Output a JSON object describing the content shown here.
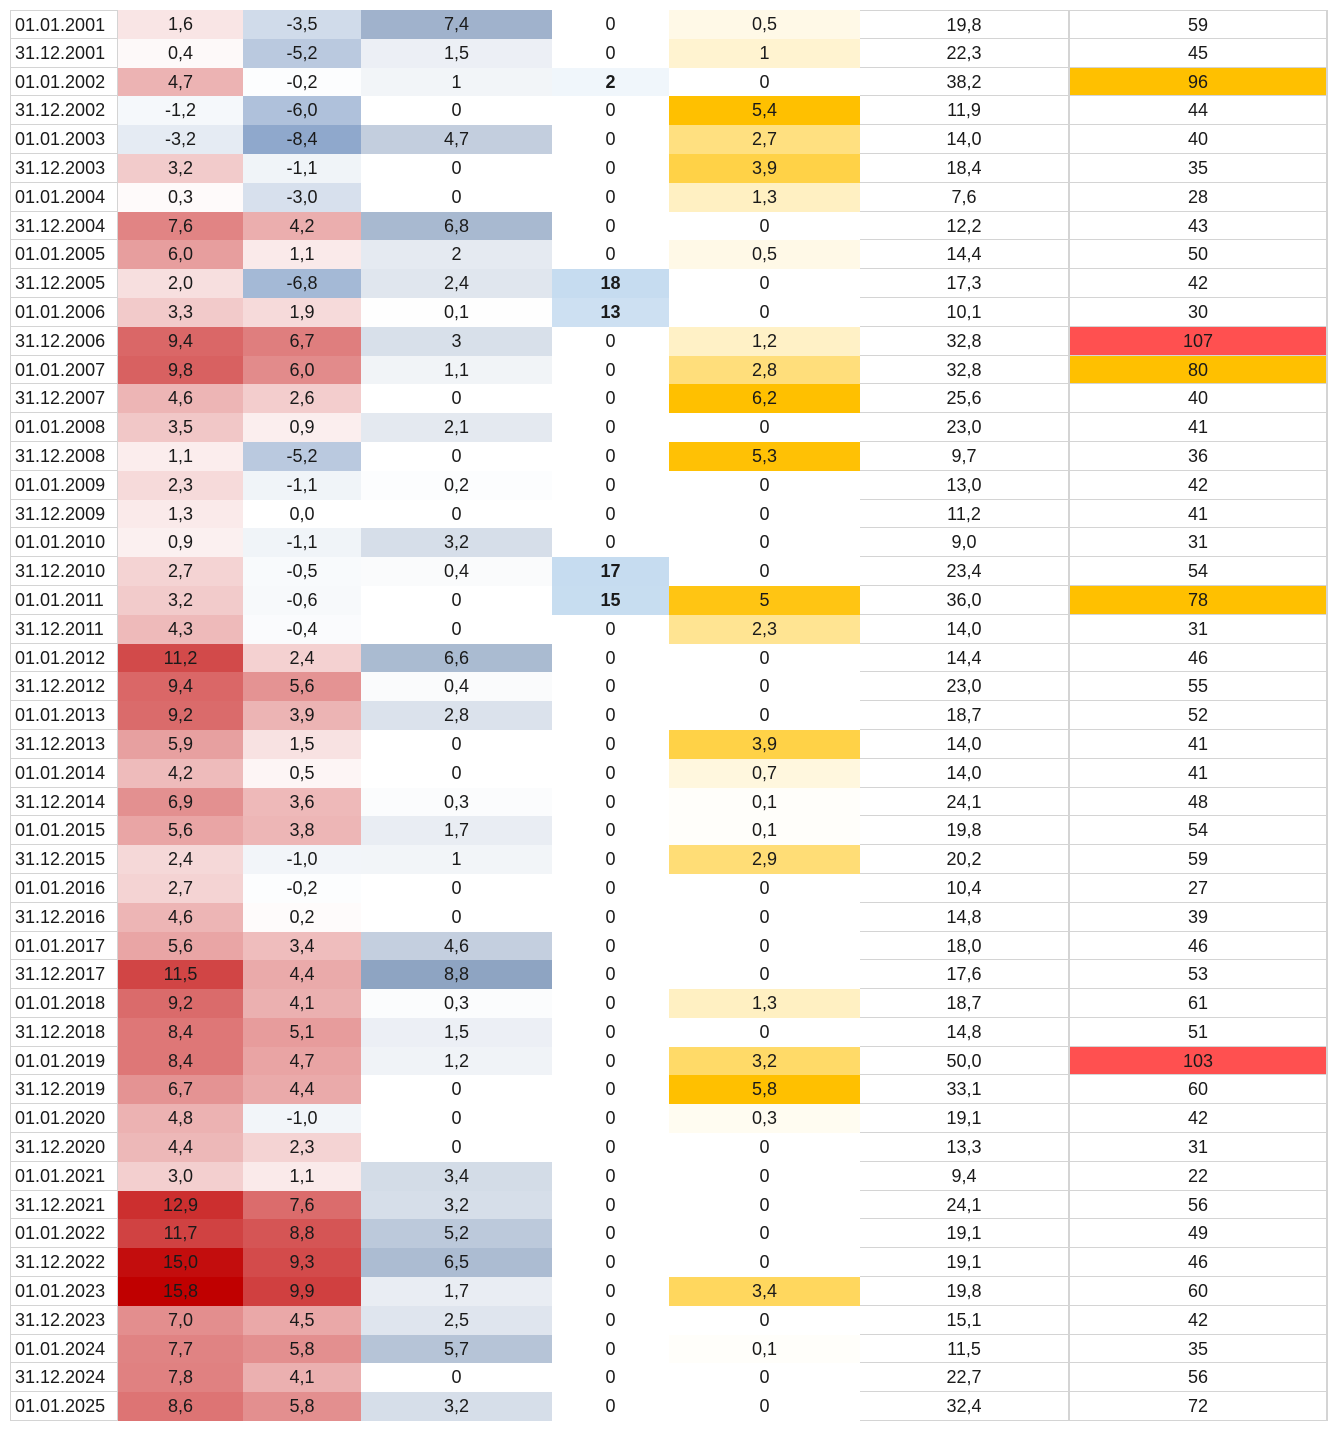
{
  "colors": {
    "red_max": "#C00000",
    "blue_neg": "#8FA8CC",
    "blue_col3": "#8EA4C2",
    "blue_col4": "#C6DCF0",
    "yellow": "#FFC000",
    "alert_orange": "#FFC000",
    "alert_red": "#FF5050"
  },
  "rows": [
    [
      "01.01.2001",
      "1,6",
      "-3,5",
      "7,4",
      "0",
      "0,5",
      "19,8",
      "59"
    ],
    [
      "31.12.2001",
      "0,4",
      "-5,2",
      "1,5",
      "0",
      "1",
      "22,3",
      "45"
    ],
    [
      "01.01.2002",
      "4,7",
      "-0,2",
      "1",
      "2",
      "0",
      "38,2",
      "96"
    ],
    [
      "31.12.2002",
      "-1,2",
      "-6,0",
      "0",
      "0",
      "5,4",
      "11,9",
      "44"
    ],
    [
      "01.01.2003",
      "-3,2",
      "-8,4",
      "4,7",
      "0",
      "2,7",
      "14,0",
      "40"
    ],
    [
      "31.12.2003",
      "3,2",
      "-1,1",
      "0",
      "0",
      "3,9",
      "18,4",
      "35"
    ],
    [
      "01.01.2004",
      "0,3",
      "-3,0",
      "0",
      "0",
      "1,3",
      "7,6",
      "28"
    ],
    [
      "31.12.2004",
      "7,6",
      "4,2",
      "6,8",
      "0",
      "0",
      "12,2",
      "43"
    ],
    [
      "01.01.2005",
      "6,0",
      "1,1",
      "2",
      "0",
      "0,5",
      "14,4",
      "50"
    ],
    [
      "31.12.2005",
      "2,0",
      "-6,8",
      "2,4",
      "18",
      "0",
      "17,3",
      "42"
    ],
    [
      "01.01.2006",
      "3,3",
      "1,9",
      "0,1",
      "13",
      "0",
      "10,1",
      "30"
    ],
    [
      "31.12.2006",
      "9,4",
      "6,7",
      "3",
      "0",
      "1,2",
      "32,8",
      "107"
    ],
    [
      "01.01.2007",
      "9,8",
      "6,0",
      "1,1",
      "0",
      "2,8",
      "32,8",
      "80"
    ],
    [
      "31.12.2007",
      "4,6",
      "2,6",
      "0",
      "0",
      "6,2",
      "25,6",
      "40"
    ],
    [
      "01.01.2008",
      "3,5",
      "0,9",
      "2,1",
      "0",
      "0",
      "23,0",
      "41"
    ],
    [
      "31.12.2008",
      "1,1",
      "-5,2",
      "0",
      "0",
      "5,3",
      "9,7",
      "36"
    ],
    [
      "01.01.2009",
      "2,3",
      "-1,1",
      "0,2",
      "0",
      "0",
      "13,0",
      "42"
    ],
    [
      "31.12.2009",
      "1,3",
      "0,0",
      "0",
      "0",
      "0",
      "11,2",
      "41"
    ],
    [
      "01.01.2010",
      "0,9",
      "-1,1",
      "3,2",
      "0",
      "0",
      "9,0",
      "31"
    ],
    [
      "31.12.2010",
      "2,7",
      "-0,5",
      "0,4",
      "17",
      "0",
      "23,4",
      "54"
    ],
    [
      "01.01.2011",
      "3,2",
      "-0,6",
      "0",
      "15",
      "5",
      "36,0",
      "78"
    ],
    [
      "31.12.2011",
      "4,3",
      "-0,4",
      "0",
      "0",
      "2,3",
      "14,0",
      "31"
    ],
    [
      "01.01.2012",
      "11,2",
      "2,4",
      "6,6",
      "0",
      "0",
      "14,4",
      "46"
    ],
    [
      "31.12.2012",
      "9,4",
      "5,6",
      "0,4",
      "0",
      "0",
      "23,0",
      "55"
    ],
    [
      "01.01.2013",
      "9,2",
      "3,9",
      "2,8",
      "0",
      "0",
      "18,7",
      "52"
    ],
    [
      "31.12.2013",
      "5,9",
      "1,5",
      "0",
      "0",
      "3,9",
      "14,0",
      "41"
    ],
    [
      "01.01.2014",
      "4,2",
      "0,5",
      "0",
      "0",
      "0,7",
      "14,0",
      "41"
    ],
    [
      "31.12.2014",
      "6,9",
      "3,6",
      "0,3",
      "0",
      "0,1",
      "24,1",
      "48"
    ],
    [
      "01.01.2015",
      "5,6",
      "3,8",
      "1,7",
      "0",
      "0,1",
      "19,8",
      "54"
    ],
    [
      "31.12.2015",
      "2,4",
      "-1,0",
      "1",
      "0",
      "2,9",
      "20,2",
      "59"
    ],
    [
      "01.01.2016",
      "2,7",
      "-0,2",
      "0",
      "0",
      "0",
      "10,4",
      "27"
    ],
    [
      "31.12.2016",
      "4,6",
      "0,2",
      "0",
      "0",
      "0",
      "14,8",
      "39"
    ],
    [
      "01.01.2017",
      "5,6",
      "3,4",
      "4,6",
      "0",
      "0",
      "18,0",
      "46"
    ],
    [
      "31.12.2017",
      "11,5",
      "4,4",
      "8,8",
      "0",
      "0",
      "17,6",
      "53"
    ],
    [
      "01.01.2018",
      "9,2",
      "4,1",
      "0,3",
      "0",
      "1,3",
      "18,7",
      "61"
    ],
    [
      "31.12.2018",
      "8,4",
      "5,1",
      "1,5",
      "0",
      "0",
      "14,8",
      "51"
    ],
    [
      "01.01.2019",
      "8,4",
      "4,7",
      "1,2",
      "0",
      "3,2",
      "50,0",
      "103"
    ],
    [
      "31.12.2019",
      "6,7",
      "4,4",
      "0",
      "0",
      "5,8",
      "33,1",
      "60"
    ],
    [
      "01.01.2020",
      "4,8",
      "-1,0",
      "0",
      "0",
      "0,3",
      "19,1",
      "42"
    ],
    [
      "31.12.2020",
      "4,4",
      "2,3",
      "0",
      "0",
      "0",
      "13,3",
      "31"
    ],
    [
      "01.01.2021",
      "3,0",
      "1,1",
      "3,4",
      "0",
      "0",
      "9,4",
      "22"
    ],
    [
      "31.12.2021",
      "12,9",
      "7,6",
      "3,2",
      "0",
      "0",
      "24,1",
      "56"
    ],
    [
      "01.01.2022",
      "11,7",
      "8,8",
      "5,2",
      "0",
      "0",
      "19,1",
      "49"
    ],
    [
      "31.12.2022",
      "15,0",
      "9,3",
      "6,5",
      "0",
      "0",
      "19,1",
      "46"
    ],
    [
      "01.01.2023",
      "15,8",
      "9,9",
      "1,7",
      "0",
      "3,4",
      "19,8",
      "60"
    ],
    [
      "31.12.2023",
      "7,0",
      "4,5",
      "2,5",
      "0",
      "0",
      "15,1",
      "42"
    ],
    [
      "01.01.2024",
      "7,7",
      "5,8",
      "5,7",
      "0",
      "0,1",
      "11,5",
      "35"
    ],
    [
      "31.12.2024",
      "7,8",
      "4,1",
      "0",
      "0",
      "0",
      "22,7",
      "56"
    ],
    [
      "01.01.2025",
      "8,6",
      "5,8",
      "3,2",
      "0",
      "0",
      "32,4",
      "72"
    ]
  ]
}
